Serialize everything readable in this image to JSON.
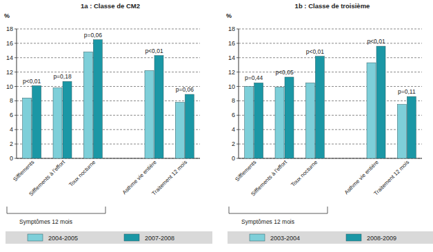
{
  "chart_data": [
    {
      "type": "bar",
      "title": "1a : Classe de CM2",
      "y_label": "%",
      "categories": [
        "Sifflements",
        "Sifflements à l'effort",
        "Toux nocturne",
        null,
        "Asthme vie entière",
        "Traitement 12 mois"
      ],
      "series": [
        {
          "name": "2004-2005",
          "color": "#7ecfd9",
          "values": [
            8.4,
            9.8,
            14.8,
            null,
            12.2,
            7.8
          ]
        },
        {
          "name": "2007-2008",
          "color": "#1b97a5",
          "values": [
            10.1,
            10.7,
            16.5,
            null,
            14.3,
            8.9
          ]
        }
      ],
      "annotations": [
        "p<0,01",
        "p=0,18",
        "p=0,06",
        null,
        "p<0,01",
        "p=0,06"
      ],
      "group_label": "Symptômes 12 mois",
      "ylim": [
        0,
        18
      ],
      "yticks": [
        0,
        2,
        4,
        6,
        8,
        10,
        12,
        14,
        16,
        18
      ],
      "grid": true,
      "legend": "bottom"
    },
    {
      "type": "bar",
      "title": "1b : Classe de troisième",
      "y_label": "%",
      "categories": [
        "Sifflements",
        "Sifflements à l'effort",
        "Toux nocturne",
        null,
        "Asthme vie entière",
        "Traitement 12 mois"
      ],
      "series": [
        {
          "name": "2003-2004",
          "color": "#7ecfd9",
          "values": [
            10.0,
            9.9,
            10.5,
            null,
            13.3,
            7.5
          ]
        },
        {
          "name": "2008-2009",
          "color": "#1b97a5",
          "values": [
            10.5,
            11.3,
            14.2,
            null,
            15.6,
            8.6
          ]
        }
      ],
      "annotations": [
        "p=0,44",
        "p<0,05",
        "p<0,01",
        null,
        "p<0,01",
        "p=0,11"
      ],
      "group_label": "Symptômes 12 mois",
      "ylim": [
        0,
        18
      ],
      "yticks": [
        0,
        2,
        4,
        6,
        8,
        10,
        12,
        14,
        16,
        18
      ],
      "grid": true,
      "legend": "bottom"
    }
  ]
}
